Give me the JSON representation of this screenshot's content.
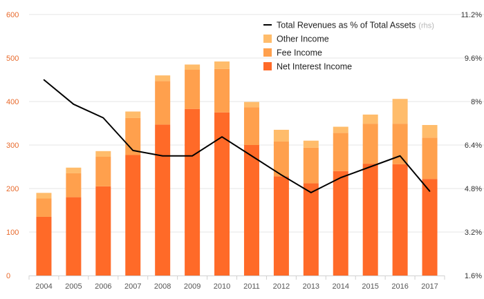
{
  "chart_data": {
    "type": "bar",
    "stacked": true,
    "categories": [
      "2004",
      "2005",
      "2006",
      "2007",
      "2008",
      "2009",
      "2010",
      "2011",
      "2012",
      "2013",
      "2014",
      "2015",
      "2016",
      "2017"
    ],
    "series": [
      {
        "name": "Net Interest Income",
        "color": "#ff6a28",
        "values": [
          135,
          180,
          205,
          277,
          347,
          383,
          375,
          300,
          228,
          212,
          240,
          257,
          256,
          222
        ]
      },
      {
        "name": "Fee Income",
        "color": "#ffa04d",
        "values": [
          42,
          55,
          68,
          85,
          100,
          90,
          100,
          87,
          80,
          82,
          88,
          92,
          93,
          95
        ]
      },
      {
        "name": "Other Income",
        "color": "#ffbc6b",
        "values": [
          13,
          13,
          13,
          15,
          13,
          12,
          17,
          12,
          27,
          16,
          14,
          21,
          57,
          29
        ]
      }
    ],
    "line": {
      "name": "Total Revenues as % of Total Assets",
      "suffix": "(rhs)",
      "color": "#000000",
      "values": [
        8.8,
        7.9,
        7.4,
        6.2,
        6.0,
        6.0,
        6.7,
        6.0,
        5.3,
        4.65,
        5.2,
        5.6,
        6.0,
        4.7
      ]
    },
    "left_axis": {
      "min": 0,
      "max": 600,
      "ticks": [
        "0",
        "100",
        "200",
        "300",
        "400",
        "500",
        "600"
      ],
      "tick_values": [
        0,
        100,
        200,
        300,
        400,
        500,
        600
      ]
    },
    "right_axis": {
      "min": 1.6,
      "max": 11.2,
      "ticks": [
        "1.6%",
        "3.2%",
        "4.8%",
        "6.4%",
        "8%",
        "9.6%",
        "11.2%"
      ],
      "tick_values": [
        1.6,
        3.2,
        4.8,
        6.4,
        8.0,
        9.6,
        11.2
      ]
    },
    "legend": {
      "position": "top-right",
      "items": [
        {
          "kind": "line",
          "label": "Total Revenues as % of Total Assets",
          "sub": "(rhs)",
          "color": "#000000"
        },
        {
          "kind": "box",
          "label": "Other Income",
          "color": "#ffbc6b"
        },
        {
          "kind": "box",
          "label": "Fee Income",
          "color": "#ffa04d"
        },
        {
          "kind": "box",
          "label": "Net Interest Income",
          "color": "#ff6a28"
        }
      ]
    }
  }
}
